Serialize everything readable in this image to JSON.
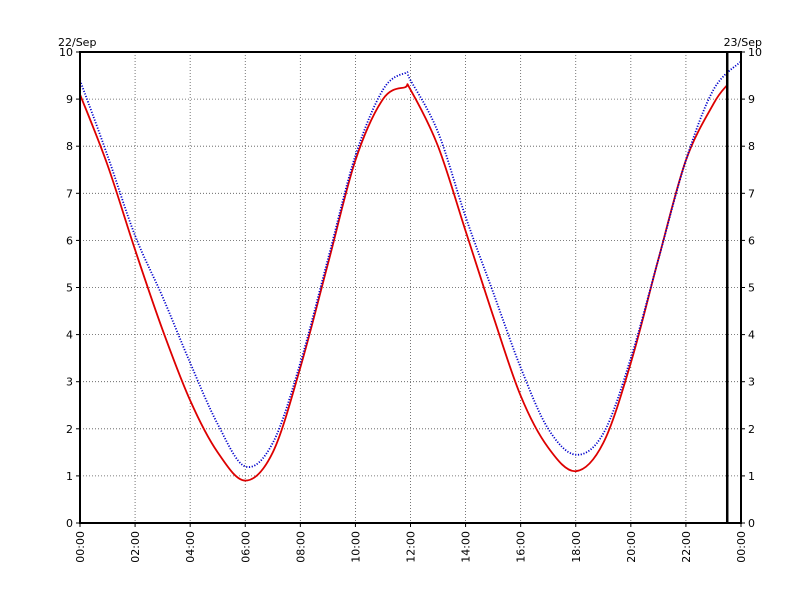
{
  "chart_data": {
    "type": "line",
    "title": "",
    "xlabel": "",
    "ylabel": "",
    "date_label_left": "22/Sep",
    "date_label_right": "23/Sep",
    "x_unit": "hours",
    "xlim": [
      0,
      24
    ],
    "ylim": [
      0,
      10
    ],
    "y_ticks": [
      0,
      1,
      2,
      3,
      4,
      5,
      6,
      7,
      8,
      9,
      10
    ],
    "y_tick_labels": [
      "0",
      "1",
      "2",
      "3",
      "4",
      "5",
      "6",
      "7",
      "8",
      "9",
      "10"
    ],
    "x_ticks": [
      0,
      2,
      4,
      6,
      8,
      10,
      12,
      14,
      16,
      18,
      20,
      22,
      24
    ],
    "x_tick_labels": [
      "00:00",
      "02:00",
      "04:00",
      "06:00",
      "08:00",
      "10:00",
      "12:00",
      "14:00",
      "16:00",
      "18:00",
      "20:00",
      "22:00",
      "00:00"
    ],
    "grid": true,
    "current_time_marker": 23.5,
    "series": [
      {
        "color": "#dd0000",
        "style": "solid",
        "x": [
          0,
          1,
          2,
          3,
          4,
          5,
          6,
          7,
          8,
          9,
          10,
          11,
          11.8,
          12,
          13,
          14,
          15,
          16,
          17,
          18,
          19,
          20,
          21,
          22,
          23,
          23.5
        ],
        "values": [
          9.1,
          7.6,
          5.8,
          4.1,
          2.6,
          1.5,
          0.9,
          1.5,
          3.3,
          5.5,
          7.7,
          9.0,
          9.25,
          9.2,
          8.0,
          6.2,
          4.4,
          2.7,
          1.6,
          1.1,
          1.7,
          3.4,
          5.6,
          7.7,
          8.9,
          9.3
        ]
      },
      {
        "color": "#0000cc",
        "style": "dotted",
        "x": [
          0,
          1,
          2,
          3,
          4,
          5,
          6,
          7,
          8,
          9,
          10,
          11,
          11.8,
          12,
          13,
          14,
          15,
          16,
          17,
          18,
          19,
          20,
          21,
          22,
          23,
          24
        ],
        "values": [
          9.4,
          7.8,
          6.1,
          4.8,
          3.4,
          2.1,
          1.2,
          1.7,
          3.4,
          5.6,
          7.8,
          9.2,
          9.55,
          9.4,
          8.3,
          6.5,
          4.9,
          3.3,
          2.0,
          1.45,
          1.9,
          3.5,
          5.6,
          7.7,
          9.2,
          9.8
        ]
      }
    ]
  }
}
